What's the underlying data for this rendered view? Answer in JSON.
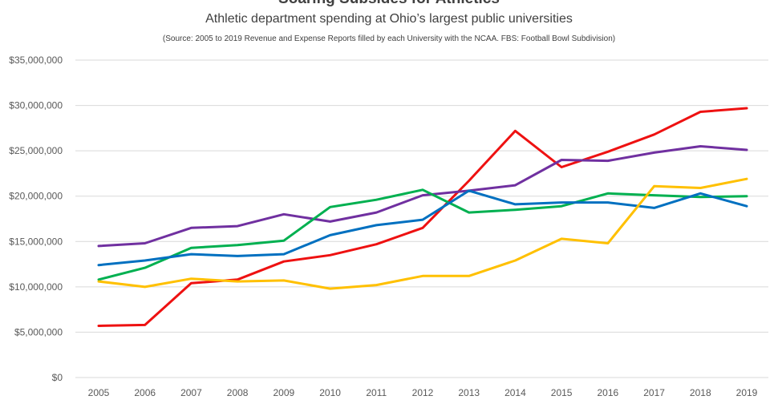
{
  "chart_data": {
    "type": "line",
    "title": "Soaring Subsides for Athletics",
    "subtitle": "Athletic department spending at Ohio’s largest public universities",
    "source": "(Source: 2005 to 2019 Revenue and Expense Reports filled by each University with the NCAA. FBS: Football Bowl Subdivision)",
    "x": [
      "2005",
      "2006",
      "2007",
      "2008",
      "2009",
      "2010",
      "2011",
      "2012",
      "2013",
      "2014",
      "2015",
      "2016",
      "2017",
      "2018",
      "2019"
    ],
    "ylim": [
      0,
      35000000
    ],
    "yticks": [
      0,
      5000000,
      10000000,
      15000000,
      20000000,
      25000000,
      30000000,
      35000000
    ],
    "ytick_labels": [
      "$0",
      "$5,000,000",
      "$10,000,000",
      "$15,000,000",
      "$20,000,000",
      "$25,000,000",
      "$30,000,000",
      "$35,000,000"
    ],
    "grid": true,
    "series": [
      {
        "color": "#ee1111",
        "values": [
          5700000,
          5800000,
          10400000,
          10800000,
          12800000,
          13500000,
          14700000,
          16500000,
          21700000,
          27200000,
          23200000,
          24900000,
          26800000,
          29300000,
          29700000
        ]
      },
      {
        "color": "#7030a0",
        "values": [
          14500000,
          14800000,
          16500000,
          16700000,
          18000000,
          17200000,
          18200000,
          20100000,
          20600000,
          21200000,
          24000000,
          23900000,
          24800000,
          25500000,
          25100000
        ]
      },
      {
        "color": "#00b050",
        "values": [
          10800000,
          12100000,
          14300000,
          14600000,
          15100000,
          18800000,
          19600000,
          20700000,
          18200000,
          18500000,
          18900000,
          20300000,
          20100000,
          19900000,
          20000000
        ]
      },
      {
        "color": "#0070c0",
        "values": [
          12400000,
          12900000,
          13600000,
          13400000,
          13600000,
          15700000,
          16800000,
          17400000,
          20600000,
          19100000,
          19300000,
          19300000,
          18700000,
          20300000,
          18900000
        ]
      },
      {
        "color": "#ffc000",
        "values": [
          10600000,
          10000000,
          10900000,
          10600000,
          10700000,
          9800000,
          10200000,
          11200000,
          11200000,
          12900000,
          15300000,
          14800000,
          21100000,
          20900000,
          21900000
        ]
      }
    ]
  }
}
